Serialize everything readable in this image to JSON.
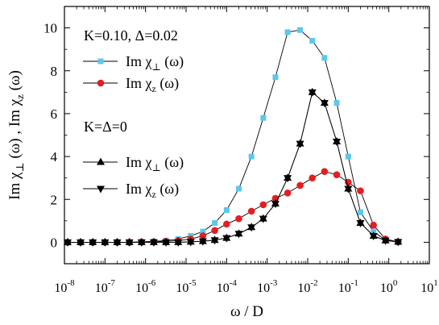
{
  "chart_data": {
    "type": "line",
    "xscale": "log",
    "xlim": [
      1e-08,
      10
    ],
    "ylim": [
      -1,
      11
    ],
    "xlabel": "ω / D",
    "ylabel": {
      "a": "Im χ",
      "a_sub": "⊥",
      "mid": " (ω) , Im χ",
      "b_sub": "z",
      "end": " (ω)"
    },
    "x_ticks": [
      {
        "value": 1e-08,
        "base": "10",
        "exp": "-8"
      },
      {
        "value": 1e-07,
        "base": "10",
        "exp": "-7"
      },
      {
        "value": 1e-06,
        "base": "10",
        "exp": "-6"
      },
      {
        "value": 1e-05,
        "base": "10",
        "exp": "-5"
      },
      {
        "value": 0.0001,
        "base": "10",
        "exp": "-4"
      },
      {
        "value": 0.001,
        "base": "10",
        "exp": "-3"
      },
      {
        "value": 0.01,
        "base": "10",
        "exp": "-2"
      },
      {
        "value": 0.1,
        "base": "10",
        "exp": "-1"
      },
      {
        "value": 1,
        "base": "10",
        "exp": "0"
      },
      {
        "value": 10,
        "base": "10",
        "exp": "1"
      }
    ],
    "y_ticks": [
      0,
      2,
      4,
      6,
      8,
      10
    ],
    "legend_groups": [
      {
        "header": "K=0.10, Δ=0.02",
        "series": [
          0,
          1
        ]
      },
      {
        "header": "K=Δ=0",
        "series": [
          2,
          3
        ]
      }
    ],
    "series": [
      {
        "label": {
          "pre": "Im χ",
          "sub": "⊥",
          "post": " (ω)"
        },
        "marker": "square",
        "color": "#5bc8ec",
        "x": [
          1.2e-08,
          2.5e-08,
          5e-08,
          1e-07,
          2e-07,
          4e-07,
          8e-07,
          1.6e-06,
          3.2e-06,
          6.4e-06,
          1.3e-05,
          2.6e-05,
          5.1e-05,
          0.0001,
          0.0002,
          0.00041,
          0.0008,
          0.0016,
          0.0032,
          0.0065,
          0.013,
          0.026,
          0.052,
          0.1,
          0.2,
          0.42,
          0.83,
          1.7
        ],
        "y": [
          0,
          0,
          0,
          0,
          0,
          0,
          0.02,
          0.04,
          0.08,
          0.15,
          0.3,
          0.5,
          0.9,
          1.5,
          2.5,
          4.0,
          5.8,
          7.7,
          9.8,
          9.9,
          9.4,
          8.6,
          6.5,
          4.0,
          1.4,
          0.5,
          0.1,
          0.02
        ]
      },
      {
        "label": {
          "pre": "Im χ",
          "sub": "z",
          "post": " (ω)"
        },
        "marker": "circle",
        "color": "#e31e24",
        "x": [
          1.2e-08,
          2.5e-08,
          5e-08,
          1e-07,
          2e-07,
          4e-07,
          8e-07,
          1.6e-06,
          3.2e-06,
          6.4e-06,
          1.3e-05,
          2.6e-05,
          5.1e-05,
          0.0001,
          0.0002,
          0.00041,
          0.0008,
          0.0016,
          0.0032,
          0.0065,
          0.013,
          0.026,
          0.052,
          0.1,
          0.2,
          0.42,
          0.83,
          1.7
        ],
        "y": [
          0,
          0,
          0,
          0,
          0,
          0,
          0.01,
          0.02,
          0.04,
          0.08,
          0.15,
          0.3,
          0.55,
          0.85,
          1.1,
          1.45,
          1.75,
          2.05,
          2.3,
          2.65,
          3.0,
          3.3,
          3.15,
          2.8,
          2.4,
          0.8,
          0.15,
          0.02
        ]
      },
      {
        "label": {
          "pre": "Im χ",
          "sub": "⊥",
          "post": " (ω)"
        },
        "marker": "triangle-up",
        "color": "#000000",
        "x": [
          1.2e-08,
          2.5e-08,
          5e-08,
          1e-07,
          2e-07,
          4e-07,
          8e-07,
          1.6e-06,
          3.2e-06,
          6.4e-06,
          1.3e-05,
          2.6e-05,
          5.1e-05,
          0.0001,
          0.0002,
          0.00041,
          0.0008,
          0.0016,
          0.0032,
          0.0065,
          0.013,
          0.026,
          0.052,
          0.1,
          0.2,
          0.42,
          0.83,
          1.7
        ],
        "y": [
          0,
          0,
          0,
          0,
          0,
          0,
          0,
          0,
          0,
          0,
          0.02,
          0.05,
          0.1,
          0.2,
          0.4,
          0.7,
          1.1,
          1.8,
          3.0,
          4.6,
          7.0,
          6.5,
          4.7,
          2.5,
          0.9,
          0.3,
          0.08,
          0.02
        ]
      },
      {
        "label": {
          "pre": "Im χ",
          "sub": "z",
          "post": " (ω)"
        },
        "marker": "triangle-down",
        "color": "#000000",
        "x": [
          1.2e-08,
          2.5e-08,
          5e-08,
          1e-07,
          2e-07,
          4e-07,
          8e-07,
          1.6e-06,
          3.2e-06,
          6.4e-06,
          1.3e-05,
          2.6e-05,
          5.1e-05,
          0.0001,
          0.0002,
          0.00041,
          0.0008,
          0.0016,
          0.0032,
          0.0065,
          0.013,
          0.026,
          0.052,
          0.1,
          0.2,
          0.42,
          0.83,
          1.7
        ],
        "y": [
          0,
          0,
          0,
          0,
          0,
          0,
          0,
          0,
          0,
          0,
          0.02,
          0.05,
          0.1,
          0.2,
          0.4,
          0.7,
          1.1,
          1.8,
          3.0,
          4.6,
          7.0,
          6.5,
          4.7,
          2.5,
          0.9,
          0.3,
          0.08,
          0.02
        ]
      }
    ]
  }
}
